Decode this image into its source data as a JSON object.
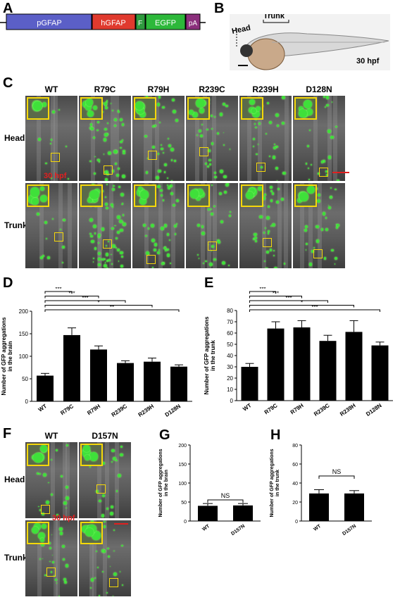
{
  "panels": {
    "A": {
      "letter": "A",
      "segments": [
        "pGFAP",
        "hGFAP",
        "F",
        "EGFP",
        "pA"
      ],
      "colors": {
        "pGFAP": "#5b5fc7",
        "hGFAP": "#e03a2e",
        "F": "#2e9a3e",
        "EGFP": "#2db83a",
        "pA": "#8b2f7c"
      }
    },
    "B": {
      "letter": "B",
      "head_label": "Head",
      "trunk_label": "Trunk",
      "stage": "30 hpf"
    },
    "C": {
      "letter": "C",
      "columns": [
        "WT",
        "R79C",
        "R79H",
        "R239C",
        "R239H",
        "D128N"
      ],
      "rows": [
        "Head",
        "Trunk"
      ],
      "stage": "30 hpf"
    },
    "D": {
      "letter": "D"
    },
    "E": {
      "letter": "E"
    },
    "F": {
      "letter": "F",
      "columns": [
        "WT",
        "D157N"
      ],
      "rows": [
        "Head",
        "Trunk"
      ],
      "stage": "30 hpf"
    },
    "G": {
      "letter": "G"
    },
    "H": {
      "letter": "H"
    }
  },
  "chart_data": [
    {
      "id": "D",
      "type": "bar",
      "categories": [
        "WT",
        "R79C",
        "R79H",
        "R239C",
        "R239H",
        "D128N"
      ],
      "values": [
        57,
        147,
        115,
        85,
        88,
        77
      ],
      "errors": [
        5,
        16,
        8,
        5,
        8,
        4
      ],
      "ylabel": "Number of GFP aggregations in the brain",
      "ylim": [
        0,
        200
      ],
      "yticks": [
        0,
        50,
        100,
        150,
        200
      ],
      "significance": [
        "***",
        "***",
        "***",
        "*",
        "**"
      ]
    },
    {
      "id": "E",
      "type": "bar",
      "categories": [
        "WT",
        "R79C",
        "R79H",
        "R239C",
        "R239H",
        "D128N"
      ],
      "values": [
        30,
        64,
        65,
        53,
        61,
        49
      ],
      "errors": [
        3,
        6,
        6,
        5,
        10,
        3
      ],
      "ylabel": "Number of GFP aggregations in the trunk",
      "ylim": [
        0,
        80
      ],
      "yticks": [
        0,
        10,
        20,
        30,
        40,
        50,
        60,
        70,
        80
      ],
      "significance": [
        "***",
        "***",
        "***",
        "*",
        "***"
      ]
    },
    {
      "id": "G",
      "type": "bar",
      "categories": [
        "WT",
        "D157N"
      ],
      "values": [
        40,
        41
      ],
      "errors": [
        6,
        5
      ],
      "ylabel": "Number of GFP aggregations in the brain",
      "ylim": [
        0,
        200
      ],
      "yticks": [
        0,
        50,
        100,
        150,
        200
      ],
      "significance": [
        "NS"
      ]
    },
    {
      "id": "H",
      "type": "bar",
      "categories": [
        "WT",
        "D157N"
      ],
      "values": [
        29,
        29
      ],
      "errors": [
        4,
        3
      ],
      "ylabel": "Number of GFP aggregations in the trunk",
      "ylim": [
        0,
        80
      ],
      "yticks": [
        0,
        20,
        40,
        60,
        80
      ],
      "significance": [
        "NS"
      ]
    }
  ]
}
